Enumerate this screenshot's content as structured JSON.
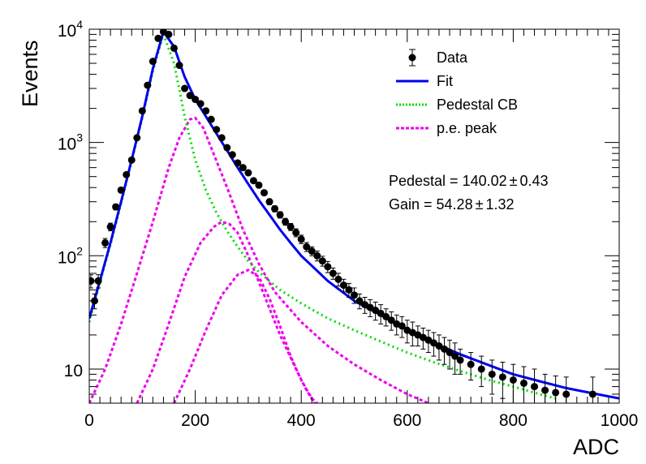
{
  "chart_data": {
    "type": "scatter",
    "title": "",
    "xlabel": "ADC",
    "ylabel": "Events",
    "xlim": [
      0,
      1000
    ],
    "ylim": [
      5,
      10000
    ],
    "yscale": "log",
    "x_ticks": [
      "0",
      "200",
      "400",
      "600",
      "800",
      "1000"
    ],
    "y_ticks": [
      {
        "base": "10",
        "exp": "4",
        "value": 10000
      },
      {
        "base": "10",
        "exp": "3",
        "value": 1000
      },
      {
        "base": "10",
        "exp": "2",
        "value": 100
      },
      {
        "base": "10",
        "exp": "",
        "value": 10
      }
    ],
    "legend": {
      "position": "top-right",
      "entries": [
        {
          "label": "Data",
          "style": "marker",
          "color": "#000000"
        },
        {
          "label": "Fit",
          "style": "solid",
          "color": "#0000ee"
        },
        {
          "label": "Pedestal CB",
          "style": "dotted",
          "color": "#00dd00"
        },
        {
          "label": "p.e. peak",
          "style": "dashed",
          "color": "#ee00ee"
        }
      ]
    },
    "stats": {
      "pedestal": {
        "label": "Pedestal = 140.02",
        "pm": "±",
        "err": "0.43"
      },
      "gain": {
        "label": "Gain = 54.28",
        "pm": "±",
        "err": "1.32"
      }
    },
    "series": [
      {
        "name": "Data",
        "style": "points",
        "color": "#000000",
        "points": [
          [
            3,
            60,
            8
          ],
          [
            10,
            40,
            6
          ],
          [
            17,
            60,
            8
          ],
          [
            30,
            130,
            12
          ],
          [
            40,
            180,
            14
          ],
          [
            50,
            270,
            16
          ],
          [
            60,
            380,
            20
          ],
          [
            70,
            520,
            23
          ],
          [
            80,
            700,
            26
          ],
          [
            90,
            1100,
            33
          ],
          [
            100,
            1900,
            44
          ],
          [
            110,
            3200,
            57
          ],
          [
            120,
            5200,
            72
          ],
          [
            130,
            8300,
            91
          ],
          [
            140,
            9500,
            97
          ],
          [
            150,
            9000,
            95
          ],
          [
            160,
            6800,
            82
          ],
          [
            170,
            4800,
            69
          ],
          [
            180,
            3000,
            55
          ],
          [
            190,
            2600,
            51
          ],
          [
            200,
            2400,
            49
          ],
          [
            210,
            2200,
            47
          ],
          [
            220,
            1900,
            44
          ],
          [
            230,
            1600,
            40
          ],
          [
            240,
            1300,
            36
          ],
          [
            250,
            1100,
            33
          ],
          [
            260,
            900,
            30
          ],
          [
            270,
            780,
            28
          ],
          [
            280,
            660,
            26
          ],
          [
            290,
            600,
            24
          ],
          [
            300,
            540,
            23
          ],
          [
            310,
            460,
            21
          ],
          [
            320,
            420,
            20
          ],
          [
            330,
            360,
            19
          ],
          [
            340,
            300,
            17
          ],
          [
            350,
            260,
            16
          ],
          [
            360,
            230,
            15
          ],
          [
            370,
            200,
            14
          ],
          [
            380,
            180,
            13
          ],
          [
            390,
            160,
            13
          ],
          [
            400,
            140,
            12
          ],
          [
            410,
            120,
            11
          ],
          [
            420,
            110,
            10
          ],
          [
            430,
            100,
            10
          ],
          [
            440,
            90,
            9
          ],
          [
            450,
            80,
            9
          ],
          [
            460,
            70,
            8
          ],
          [
            470,
            62,
            8
          ],
          [
            480,
            55,
            7
          ],
          [
            490,
            50,
            7
          ],
          [
            500,
            45,
            7
          ],
          [
            510,
            40,
            6
          ],
          [
            520,
            37,
            6
          ],
          [
            530,
            35,
            6
          ],
          [
            540,
            33,
            6
          ],
          [
            550,
            31,
            6
          ],
          [
            560,
            29,
            5
          ],
          [
            570,
            27,
            5
          ],
          [
            580,
            25,
            5
          ],
          [
            590,
            24,
            5
          ],
          [
            600,
            22,
            5
          ],
          [
            610,
            21,
            5
          ],
          [
            620,
            20,
            4
          ],
          [
            630,
            19,
            4
          ],
          [
            640,
            18,
            4
          ],
          [
            650,
            17,
            4
          ],
          [
            660,
            16,
            4
          ],
          [
            670,
            15,
            4
          ],
          [
            680,
            14,
            4
          ],
          [
            690,
            13,
            4
          ],
          [
            700,
            12,
            3
          ],
          [
            720,
            11,
            3
          ],
          [
            740,
            10,
            3
          ],
          [
            760,
            9,
            3
          ],
          [
            780,
            8.5,
            3
          ],
          [
            800,
            8,
            3
          ],
          [
            820,
            7.5,
            3
          ],
          [
            840,
            7,
            3
          ],
          [
            860,
            6.5,
            2.5
          ],
          [
            880,
            6.2,
            2.5
          ],
          [
            900,
            6,
            2.5
          ],
          [
            950,
            6,
            2.5
          ]
        ]
      },
      {
        "name": "Fit",
        "style": "solid",
        "color": "#0000ee",
        "points": [
          [
            0,
            28
          ],
          [
            20,
            60
          ],
          [
            40,
            130
          ],
          [
            60,
            300
          ],
          [
            80,
            700
          ],
          [
            100,
            1700
          ],
          [
            120,
            4500
          ],
          [
            140,
            9500
          ],
          [
            160,
            7000
          ],
          [
            180,
            3800
          ],
          [
            200,
            2400
          ],
          [
            220,
            1700
          ],
          [
            240,
            1200
          ],
          [
            260,
            850
          ],
          [
            280,
            600
          ],
          [
            300,
            430
          ],
          [
            320,
            310
          ],
          [
            340,
            230
          ],
          [
            360,
            170
          ],
          [
            380,
            130
          ],
          [
            400,
            100
          ],
          [
            450,
            60
          ],
          [
            500,
            40
          ],
          [
            550,
            30
          ],
          [
            600,
            22
          ],
          [
            650,
            17
          ],
          [
            700,
            13.5
          ],
          [
            750,
            11
          ],
          [
            800,
            9
          ],
          [
            850,
            7.8
          ],
          [
            900,
            6.8
          ],
          [
            950,
            6.1
          ],
          [
            1000,
            5.5
          ]
        ]
      },
      {
        "name": "Pedestal CB",
        "style": "dotted",
        "color": "#00dd00",
        "points": [
          [
            0,
            26
          ],
          [
            20,
            58
          ],
          [
            40,
            125
          ],
          [
            60,
            290
          ],
          [
            80,
            680
          ],
          [
            100,
            1650
          ],
          [
            120,
            4300
          ],
          [
            140,
            9000
          ],
          [
            160,
            5000
          ],
          [
            180,
            1700
          ],
          [
            200,
            700
          ],
          [
            220,
            380
          ],
          [
            240,
            240
          ],
          [
            260,
            165
          ],
          [
            280,
            120
          ],
          [
            300,
            90
          ],
          [
            320,
            72
          ],
          [
            340,
            60
          ],
          [
            360,
            50
          ],
          [
            400,
            38
          ],
          [
            450,
            28
          ],
          [
            500,
            22
          ],
          [
            550,
            17.5
          ],
          [
            600,
            14
          ],
          [
            650,
            11.5
          ],
          [
            700,
            9.6
          ],
          [
            750,
            8.1
          ],
          [
            800,
            7
          ],
          [
            850,
            6
          ],
          [
            880,
            5.5
          ]
        ]
      },
      {
        "name": "p.e. peak 1",
        "style": "dashed",
        "color": "#ee00ee",
        "points": [
          [
            0,
            5
          ],
          [
            30,
            10
          ],
          [
            60,
            25
          ],
          [
            90,
            70
          ],
          [
            120,
            200
          ],
          [
            150,
            600
          ],
          [
            170,
            1100
          ],
          [
            190,
            1600
          ],
          [
            200,
            1650
          ],
          [
            215,
            1350
          ],
          [
            230,
            900
          ],
          [
            260,
            400
          ],
          [
            290,
            170
          ],
          [
            320,
            85
          ],
          [
            350,
            48
          ],
          [
            400,
            26
          ],
          [
            450,
            16
          ],
          [
            500,
            11
          ],
          [
            550,
            8
          ],
          [
            600,
            6
          ],
          [
            640,
            5
          ]
        ]
      },
      {
        "name": "p.e. peak 2",
        "style": "dashed",
        "color": "#ee00ee",
        "points": [
          [
            90,
            5
          ],
          [
            120,
            10
          ],
          [
            150,
            25
          ],
          [
            180,
            65
          ],
          [
            210,
            130
          ],
          [
            235,
            180
          ],
          [
            250,
            200
          ],
          [
            265,
            190
          ],
          [
            280,
            160
          ],
          [
            300,
            100
          ],
          [
            330,
            45
          ],
          [
            360,
            20
          ],
          [
            390,
            10
          ],
          [
            410,
            6.5
          ],
          [
            425,
            5
          ]
        ]
      },
      {
        "name": "p.e. peak 3",
        "style": "dashed",
        "color": "#ee00ee",
        "points": [
          [
            160,
            5
          ],
          [
            190,
            10
          ],
          [
            220,
            22
          ],
          [
            250,
            45
          ],
          [
            280,
            68
          ],
          [
            300,
            75
          ],
          [
            320,
            65
          ],
          [
            340,
            42
          ],
          [
            360,
            24
          ],
          [
            380,
            13
          ],
          [
            400,
            8
          ],
          [
            420,
            5.5
          ],
          [
            430,
            5
          ]
        ]
      }
    ]
  }
}
